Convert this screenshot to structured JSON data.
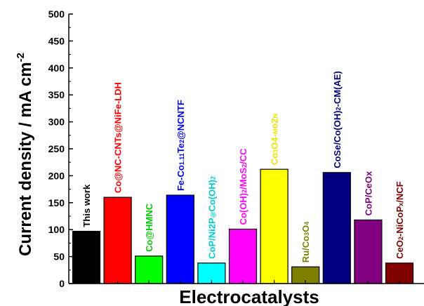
{
  "chart_data": {
    "type": "bar",
    "xlabel": "Electrocatalysts",
    "ylabel": "Current density / mA cm",
    "ylabel_superscript": "-2",
    "ylim": [
      0,
      500
    ],
    "yticks": [
      0,
      50,
      100,
      150,
      200,
      250,
      300,
      350,
      400,
      450,
      500
    ],
    "grid": false,
    "categories": [
      "This work",
      "Co@NC-CNTs@NiFe-LDH",
      "Co@HMNC",
      "Fe-Co1.11Te2@NCNTF",
      "CoP/Ni2P@Co(OH)2",
      "Co(OH)2/MoS2/CC",
      "Co3O4-Mo2N",
      "Ru/Co3O4",
      "CoSe/Co(OH)2-CM(AE)",
      "CoP/CeOx",
      "CeO2-NiCoPx/NCF"
    ],
    "values": [
      97,
      160,
      51,
      164,
      38,
      101,
      212,
      31,
      206,
      118,
      38
    ],
    "colors": [
      "#000000",
      "#ff0000",
      "#00ff00",
      "#0000ff",
      "#00ffff",
      "#ff00ff",
      "#ffff00",
      "#808000",
      "#000080",
      "#800080",
      "#800000"
    ],
    "label_colors": [
      "#000000",
      "#ff0000",
      "#00cc00",
      "#0000ff",
      "#00cccc",
      "#ff00ff",
      "#e6e600",
      "#808000",
      "#000080",
      "#800080",
      "#800000"
    ]
  }
}
